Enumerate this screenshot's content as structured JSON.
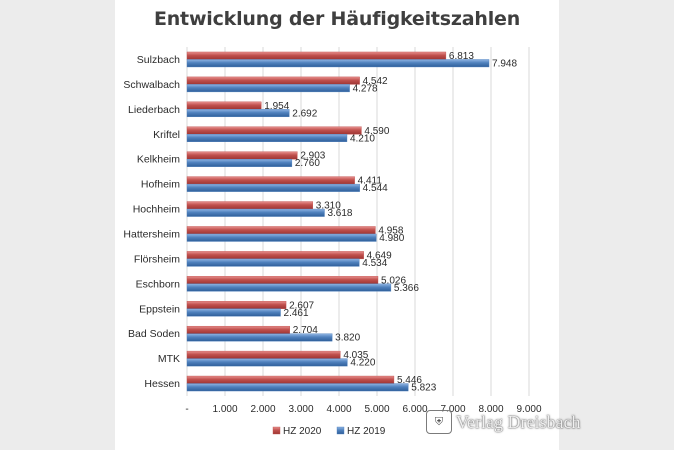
{
  "chart_data": {
    "type": "bar",
    "orientation": "horizontal",
    "title": "Entwicklung der Häufigkeitszahlen",
    "categories": [
      "Sulzbach",
      "Schwalbach",
      "Liederbach",
      "Kriftel",
      "Kelkheim",
      "Hofheim",
      "Hochheim",
      "Hattersheim",
      "Flörsheim",
      "Eschborn",
      "Eppstein",
      "Bad Soden",
      "MTK",
      "Hessen"
    ],
    "series": [
      {
        "name": "HZ 2020",
        "color": "#c0504d",
        "values": [
          6813,
          4542,
          1954,
          4590,
          2903,
          4411,
          3310,
          4958,
          4649,
          5026,
          2607,
          2704,
          4035,
          5446
        ],
        "labels": [
          "6.813",
          "4.542",
          "1.954",
          "4.590",
          "2.903",
          "4.411",
          "3.310",
          "4.958",
          "4.649",
          "5.026",
          "2.607",
          "2.704",
          "4.035",
          "5.446"
        ]
      },
      {
        "name": "HZ 2019",
        "color": "#4f81bd",
        "values": [
          7948,
          4278,
          2692,
          4210,
          2760,
          4544,
          3618,
          4980,
          4534,
          5366,
          2461,
          3820,
          4220,
          5823
        ],
        "labels": [
          "7.948",
          "4.278",
          "2.692",
          "4.210",
          "2.760",
          "4.544",
          "3.618",
          "4.980",
          "4.534",
          "5.366",
          "2.461",
          "3.820",
          "4.220",
          "5.823"
        ]
      }
    ],
    "xlim": [
      0,
      9000
    ],
    "xticks": [
      0,
      1000,
      2000,
      3000,
      4000,
      5000,
      6000,
      7000,
      8000,
      9000
    ],
    "xtick_labels": [
      "-",
      "1.000",
      "2.000",
      "3.000",
      "4.000",
      "5.000",
      "6.000",
      "7.000",
      "8.000",
      "9.000"
    ],
    "grid": true,
    "legend_position": "bottom"
  },
  "watermark": {
    "text": "Verlag Dreisbach",
    "seal_icon": "coat-of-arms-icon"
  }
}
